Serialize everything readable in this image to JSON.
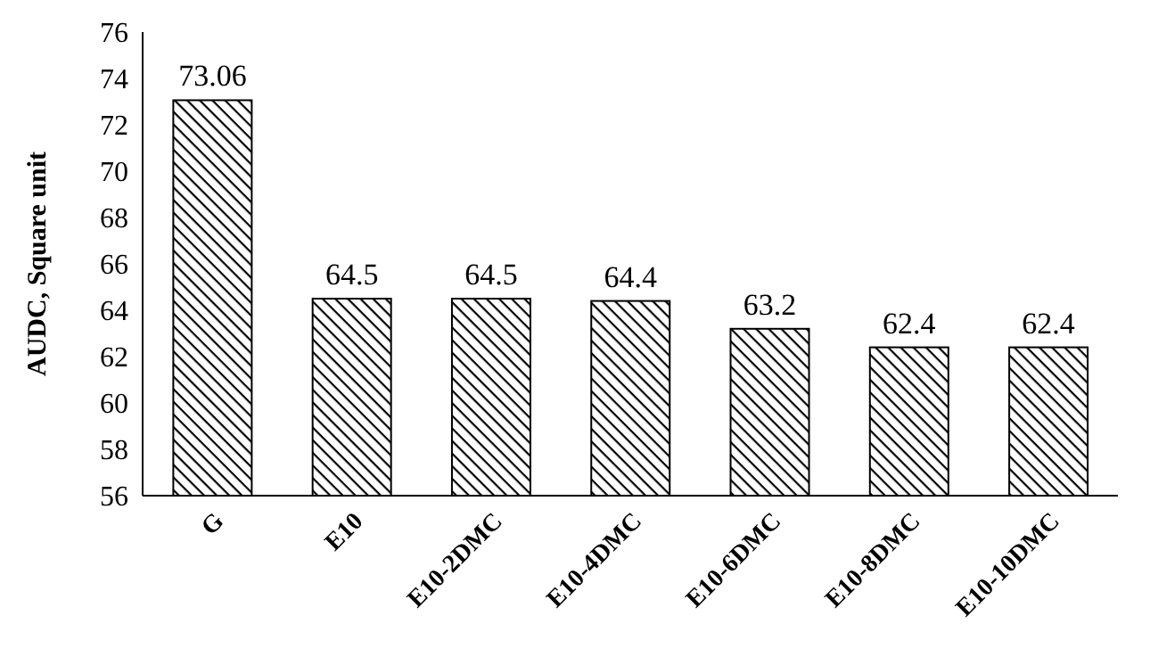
{
  "chart_data": {
    "type": "bar",
    "ylabel": "AUDC, Square unit",
    "categories": [
      "G",
      "E10",
      "E10-2DMC",
      "E10-4DMC",
      "E10-6DMC",
      "E10-8DMC",
      "E10-10DMC"
    ],
    "values": [
      73.06,
      64.5,
      64.5,
      64.4,
      63.2,
      62.4,
      62.4
    ],
    "color": "#000000",
    "ylim": [
      56,
      76
    ],
    "yticks": [
      56,
      58,
      60,
      62,
      64,
      66,
      68,
      70,
      72,
      74,
      76
    ],
    "grid": false,
    "legend": false,
    "data_labels": true
  }
}
